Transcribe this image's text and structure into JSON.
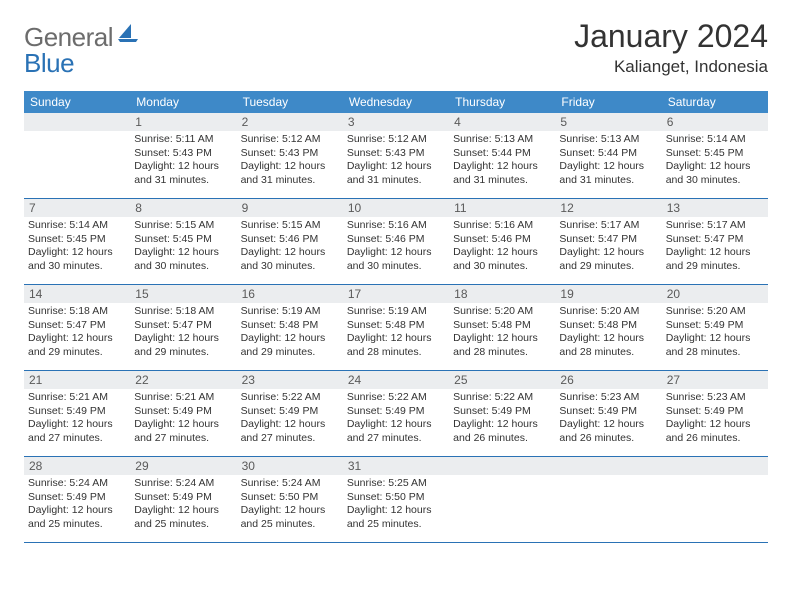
{
  "logo": {
    "general": "General",
    "blue": "Blue"
  },
  "title": "January 2024",
  "location": "Kalianget, Indonesia",
  "weekdays": [
    "Sunday",
    "Monday",
    "Tuesday",
    "Wednesday",
    "Thursday",
    "Friday",
    "Saturday"
  ],
  "colors": {
    "header_bg": "#3e89c8",
    "rule": "#2a72b5",
    "daynum_bg": "#ebedef",
    "text": "#333333",
    "logo_gray": "#6c6c6c",
    "logo_blue": "#2a72b5"
  },
  "start_offset": 1,
  "days": [
    {
      "n": "1",
      "sunrise": "5:11 AM",
      "sunset": "5:43 PM",
      "daylight": "12 hours and 31 minutes."
    },
    {
      "n": "2",
      "sunrise": "5:12 AM",
      "sunset": "5:43 PM",
      "daylight": "12 hours and 31 minutes."
    },
    {
      "n": "3",
      "sunrise": "5:12 AM",
      "sunset": "5:43 PM",
      "daylight": "12 hours and 31 minutes."
    },
    {
      "n": "4",
      "sunrise": "5:13 AM",
      "sunset": "5:44 PM",
      "daylight": "12 hours and 31 minutes."
    },
    {
      "n": "5",
      "sunrise": "5:13 AM",
      "sunset": "5:44 PM",
      "daylight": "12 hours and 31 minutes."
    },
    {
      "n": "6",
      "sunrise": "5:14 AM",
      "sunset": "5:45 PM",
      "daylight": "12 hours and 30 minutes."
    },
    {
      "n": "7",
      "sunrise": "5:14 AM",
      "sunset": "5:45 PM",
      "daylight": "12 hours and 30 minutes."
    },
    {
      "n": "8",
      "sunrise": "5:15 AM",
      "sunset": "5:45 PM",
      "daylight": "12 hours and 30 minutes."
    },
    {
      "n": "9",
      "sunrise": "5:15 AM",
      "sunset": "5:46 PM",
      "daylight": "12 hours and 30 minutes."
    },
    {
      "n": "10",
      "sunrise": "5:16 AM",
      "sunset": "5:46 PM",
      "daylight": "12 hours and 30 minutes."
    },
    {
      "n": "11",
      "sunrise": "5:16 AM",
      "sunset": "5:46 PM",
      "daylight": "12 hours and 30 minutes."
    },
    {
      "n": "12",
      "sunrise": "5:17 AM",
      "sunset": "5:47 PM",
      "daylight": "12 hours and 29 minutes."
    },
    {
      "n": "13",
      "sunrise": "5:17 AM",
      "sunset": "5:47 PM",
      "daylight": "12 hours and 29 minutes."
    },
    {
      "n": "14",
      "sunrise": "5:18 AM",
      "sunset": "5:47 PM",
      "daylight": "12 hours and 29 minutes."
    },
    {
      "n": "15",
      "sunrise": "5:18 AM",
      "sunset": "5:47 PM",
      "daylight": "12 hours and 29 minutes."
    },
    {
      "n": "16",
      "sunrise": "5:19 AM",
      "sunset": "5:48 PM",
      "daylight": "12 hours and 29 minutes."
    },
    {
      "n": "17",
      "sunrise": "5:19 AM",
      "sunset": "5:48 PM",
      "daylight": "12 hours and 28 minutes."
    },
    {
      "n": "18",
      "sunrise": "5:20 AM",
      "sunset": "5:48 PM",
      "daylight": "12 hours and 28 minutes."
    },
    {
      "n": "19",
      "sunrise": "5:20 AM",
      "sunset": "5:48 PM",
      "daylight": "12 hours and 28 minutes."
    },
    {
      "n": "20",
      "sunrise": "5:20 AM",
      "sunset": "5:49 PM",
      "daylight": "12 hours and 28 minutes."
    },
    {
      "n": "21",
      "sunrise": "5:21 AM",
      "sunset": "5:49 PM",
      "daylight": "12 hours and 27 minutes."
    },
    {
      "n": "22",
      "sunrise": "5:21 AM",
      "sunset": "5:49 PM",
      "daylight": "12 hours and 27 minutes."
    },
    {
      "n": "23",
      "sunrise": "5:22 AM",
      "sunset": "5:49 PM",
      "daylight": "12 hours and 27 minutes."
    },
    {
      "n": "24",
      "sunrise": "5:22 AM",
      "sunset": "5:49 PM",
      "daylight": "12 hours and 27 minutes."
    },
    {
      "n": "25",
      "sunrise": "5:22 AM",
      "sunset": "5:49 PM",
      "daylight": "12 hours and 26 minutes."
    },
    {
      "n": "26",
      "sunrise": "5:23 AM",
      "sunset": "5:49 PM",
      "daylight": "12 hours and 26 minutes."
    },
    {
      "n": "27",
      "sunrise": "5:23 AM",
      "sunset": "5:49 PM",
      "daylight": "12 hours and 26 minutes."
    },
    {
      "n": "28",
      "sunrise": "5:24 AM",
      "sunset": "5:49 PM",
      "daylight": "12 hours and 25 minutes."
    },
    {
      "n": "29",
      "sunrise": "5:24 AM",
      "sunset": "5:49 PM",
      "daylight": "12 hours and 25 minutes."
    },
    {
      "n": "30",
      "sunrise": "5:24 AM",
      "sunset": "5:50 PM",
      "daylight": "12 hours and 25 minutes."
    },
    {
      "n": "31",
      "sunrise": "5:25 AM",
      "sunset": "5:50 PM",
      "daylight": "12 hours and 25 minutes."
    }
  ],
  "labels": {
    "sunrise": "Sunrise:",
    "sunset": "Sunset:",
    "daylight": "Daylight:"
  }
}
